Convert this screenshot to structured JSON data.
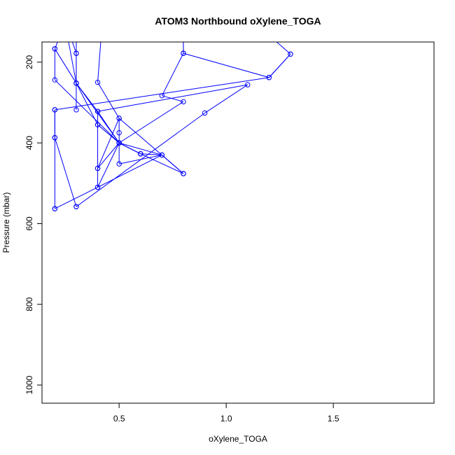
{
  "chart_data": {
    "type": "scatter",
    "title": "ATOM3 Northbound oXylene_TOGA",
    "xlabel": "oXylene_TOGA",
    "ylabel": "Pressure (mbar)",
    "xlim": [
      0.14,
      1.97
    ],
    "ylim": [
      1045,
      150
    ],
    "y_reversed": true,
    "x_ticks": [
      0.5,
      1.0,
      1.5
    ],
    "x_tick_labels": [
      "0.5",
      "1.0",
      "1.5"
    ],
    "y_ticks": [
      200,
      400,
      600,
      800,
      1000
    ],
    "y_tick_labels": [
      "200",
      "400",
      "600",
      "800",
      "1000"
    ],
    "grid": false,
    "legend": "none",
    "colors": {
      "series": "#0000ff",
      "axis": "#000000",
      "background": "#ffffff"
    },
    "series": [
      {
        "points": [
          {
            "x": 0.2,
            "y": 563
          },
          {
            "x": 0.2,
            "y": 387
          },
          {
            "x": 0.2,
            "y": 318
          },
          {
            "x": 1.2,
            "y": 238
          },
          {
            "x": 1.3,
            "y": 180
          },
          {
            "x": 1.15,
            "y": 110
          }
        ]
      },
      {
        "points": [
          {
            "x": 0.2,
            "y": 563
          },
          {
            "x": 0.4,
            "y": 510
          },
          {
            "x": 0.7,
            "y": 430
          },
          {
            "x": 0.5,
            "y": 452
          },
          {
            "x": 0.5,
            "y": 400
          },
          {
            "x": 0.6,
            "y": 427
          },
          {
            "x": 0.7,
            "y": 430
          }
        ]
      },
      {
        "points": [
          {
            "x": 0.3,
            "y": 558
          },
          {
            "x": 0.2,
            "y": 387
          },
          {
            "x": 0.2,
            "y": 318
          }
        ]
      },
      {
        "points": [
          {
            "x": 0.3,
            "y": 558
          },
          {
            "x": 0.9,
            "y": 326
          },
          {
            "x": 1.1,
            "y": 256
          },
          {
            "x": 0.4,
            "y": 322
          },
          {
            "x": 0.4,
            "y": 355
          },
          {
            "x": 0.4,
            "y": 463
          },
          {
            "x": 0.5,
            "y": 339
          },
          {
            "x": 0.5,
            "y": 375
          },
          {
            "x": 0.5,
            "y": 400
          },
          {
            "x": 0.8,
            "y": 298
          },
          {
            "x": 0.7,
            "y": 283
          },
          {
            "x": 0.8,
            "y": 178
          },
          {
            "x": 0.8,
            "y": 120
          }
        ]
      },
      {
        "points": [
          {
            "x": 0.6,
            "y": 427
          },
          {
            "x": 0.5,
            "y": 400
          },
          {
            "x": 0.2,
            "y": 244
          },
          {
            "x": 0.2,
            "y": 167
          },
          {
            "x": 0.25,
            "y": 100
          }
        ]
      },
      {
        "points": [
          {
            "x": 0.3,
            "y": 318
          },
          {
            "x": 0.3,
            "y": 252
          },
          {
            "x": 0.3,
            "y": 178
          },
          {
            "x": 0.3,
            "y": 100
          }
        ]
      },
      {
        "points": [
          {
            "x": 0.5,
            "y": 400
          },
          {
            "x": 0.4,
            "y": 463
          },
          {
            "x": 0.4,
            "y": 510
          },
          {
            "x": 0.5,
            "y": 400
          },
          {
            "x": 0.4,
            "y": 355
          },
          {
            "x": 0.3,
            "y": 252
          },
          {
            "x": 0.3,
            "y": 178
          },
          {
            "x": 0.25,
            "y": 100
          }
        ]
      },
      {
        "points": [
          {
            "x": 0.8,
            "y": 476
          },
          {
            "x": 0.7,
            "y": 430
          },
          {
            "x": 0.5,
            "y": 400
          },
          {
            "x": 0.4,
            "y": 322
          },
          {
            "x": 0.3,
            "y": 252
          },
          {
            "x": 0.25,
            "y": 110
          }
        ]
      },
      {
        "points": [
          {
            "x": 0.8,
            "y": 476
          },
          {
            "x": 0.5,
            "y": 339
          },
          {
            "x": 0.4,
            "y": 250
          },
          {
            "x": 0.42,
            "y": 110
          }
        ]
      },
      {
        "points": [
          {
            "x": 0.8,
            "y": 476
          },
          {
            "x": 0.6,
            "y": 427
          },
          {
            "x": 0.5,
            "y": 400
          },
          {
            "x": 0.3,
            "y": 252
          },
          {
            "x": 0.2,
            "y": 167
          }
        ]
      },
      {
        "points": [
          {
            "x": 1.3,
            "y": 180
          },
          {
            "x": 1.2,
            "y": 238
          },
          {
            "x": 0.8,
            "y": 178
          },
          {
            "x": 0.8,
            "y": 120
          }
        ]
      }
    ]
  }
}
